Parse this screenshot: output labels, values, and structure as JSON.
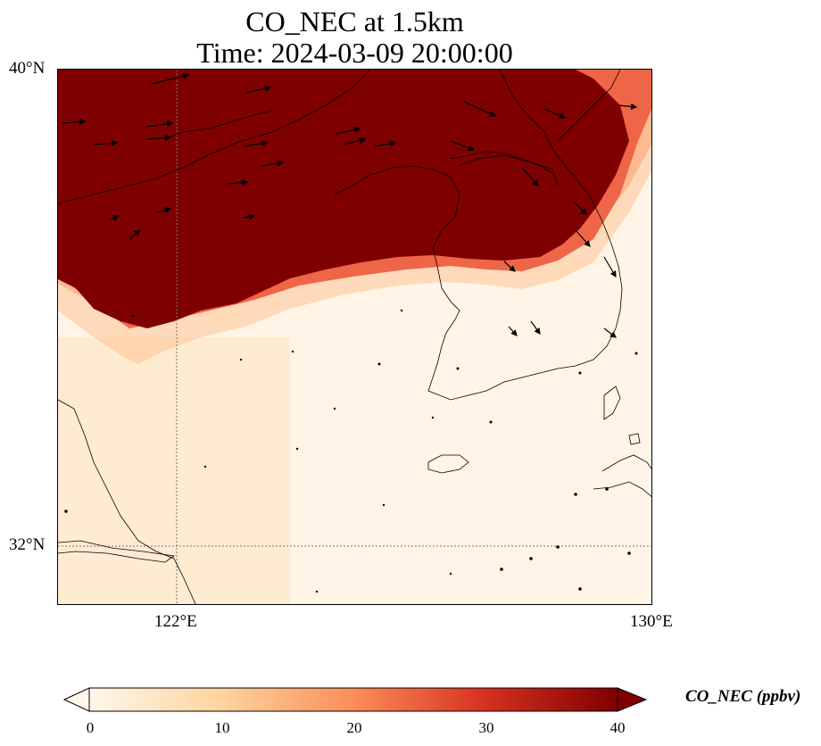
{
  "title": {
    "line1": "CO_NEC at 1.5km",
    "line2": "Time: 2024-03-09 20:00:00"
  },
  "axes": {
    "lat_labels": [
      "40°N",
      "32°N"
    ],
    "lon_labels": [
      "122°E",
      "130°E"
    ]
  },
  "colorbar": {
    "label": "CO_NEC (ppbv)",
    "ticks": [
      "0",
      "10",
      "20",
      "30",
      "40"
    ],
    "min": 0,
    "max": 40,
    "colormap": "OrRd",
    "extend": "both"
  },
  "colors": {
    "low": "#fff7ec",
    "mid": "#fdbb84",
    "high": "#d7301f",
    "max": "#7f0000"
  },
  "chart_data": {
    "type": "heatmap",
    "variable": "CO_NEC",
    "units": "ppbv",
    "level": "1.5km",
    "time": "2024-03-09 20:00:00",
    "lon_range": [
      120,
      130
    ],
    "lat_range": [
      31,
      40
    ],
    "gridlines": {
      "lons": [
        122,
        130
      ],
      "lats": [
        32
      ]
    },
    "field_description": "concentration ≥40 ppbv over northern/northeast region (north China, Bohai, northern Korea), sharp gradient band diagonally to near 0–5 over Yellow Sea and southern Korea",
    "wind_vectors": true
  }
}
